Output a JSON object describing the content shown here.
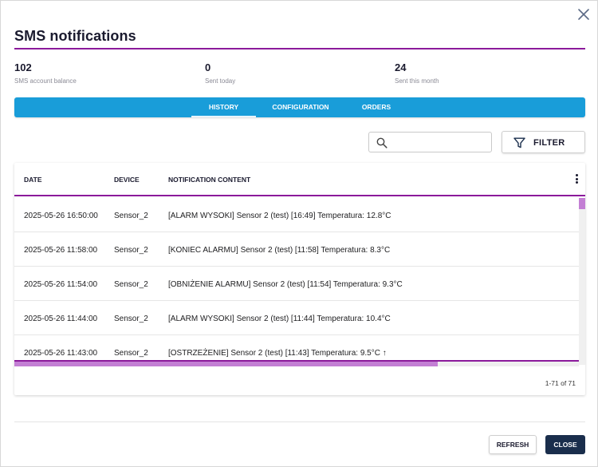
{
  "dialog": {
    "title": "SMS notifications",
    "close_icon": "close-icon"
  },
  "stats": [
    {
      "value": "102",
      "label": "SMS account balance"
    },
    {
      "value": "0",
      "label": "Sent today"
    },
    {
      "value": "24",
      "label": "Sent this month"
    }
  ],
  "tabs": [
    {
      "label": "HISTORY",
      "active": true
    },
    {
      "label": "CONFIGURATION",
      "active": false
    },
    {
      "label": "ORDERS",
      "active": false
    }
  ],
  "toolbar": {
    "search_placeholder": "",
    "search_value": "",
    "search_icon": "search-icon",
    "filter_label": "FILTER",
    "filter_icon": "funnel-icon"
  },
  "table": {
    "columns": [
      "DATE",
      "DEVICE",
      "NOTIFICATION CONTENT"
    ],
    "menu_icon": "more-vertical-icon",
    "rows": [
      {
        "date": "2025-05-26 16:50:00",
        "device": "Sensor_2",
        "content": "[ALARM WYSOKI] Sensor 2 (test) [16:49] Temperatura: 12.8°C"
      },
      {
        "date": "2025-05-26 11:58:00",
        "device": "Sensor_2",
        "content": "[KONIEC ALARMU] Sensor 2 (test) [11:58] Temperatura: 8.3°C"
      },
      {
        "date": "2025-05-26 11:54:00",
        "device": "Sensor_2",
        "content": "[OBNIŻENIE ALARMU] Sensor 2 (test) [11:54] Temperatura: 9.3°C"
      },
      {
        "date": "2025-05-26 11:44:00",
        "device": "Sensor_2",
        "content": "[ALARM WYSOKI] Sensor 2 (test) [11:44] Temperatura: 10.4°C"
      },
      {
        "date": "2025-05-26 11:43:00",
        "device": "Sensor_2",
        "content": "[OSTRZEŻENIE] Sensor 2 (test) [11:43] Temperatura: 9.5°C ↑"
      }
    ],
    "pagination": "1-71 of 71"
  },
  "footer": {
    "refresh_label": "REFRESH",
    "close_label": "CLOSE"
  },
  "colors": {
    "accent_purple": "#8b1a9b",
    "tab_bar_blue": "#199dd9",
    "close_button_navy": "#1a2e4c"
  }
}
